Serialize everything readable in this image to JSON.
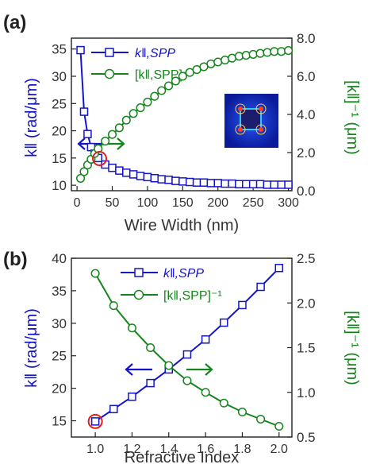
{
  "colors": {
    "left_series": "#1515c8",
    "right_series": "#16841c",
    "highlight": "#e02020",
    "text": "#333333"
  },
  "chart_data": [
    {
      "panel_label": "(a)",
      "type": "line",
      "xlabel": "Wire Width (nm)",
      "x_ticks": [
        "0",
        "50",
        "100",
        "150",
        "200",
        "250",
        "300"
      ],
      "y_left_label": "k‖ (rad/μm)",
      "y_left_ticks": [
        "10",
        "15",
        "20",
        "25",
        "30",
        "35"
      ],
      "y_right_label": "[k‖]⁻¹ (μm)",
      "y_right_ticks": [
        "0.0",
        "2.0",
        "4.0",
        "6.0",
        "8.0"
      ],
      "legend": [
        "k‖,SPP",
        "[k‖,SPP]⁻¹"
      ],
      "xlim": [
        -8,
        305
      ],
      "ylim_left": [
        9,
        37
      ],
      "ylim_right": [
        0,
        8
      ],
      "series": [
        {
          "axis": "left",
          "marker": "square",
          "x": [
            5,
            10,
            15,
            20,
            25,
            30,
            40,
            50,
            60,
            70,
            80,
            90,
            100,
            110,
            120,
            130,
            140,
            150,
            160,
            170,
            180,
            190,
            200,
            210,
            220,
            230,
            240,
            250,
            260,
            270,
            280,
            290,
            300
          ],
          "values": [
            34.8,
            23.5,
            19.4,
            17.0,
            15.8,
            15.0,
            13.8,
            13.2,
            12.7,
            12.3,
            12.0,
            11.7,
            11.5,
            11.3,
            11.1,
            11.0,
            10.8,
            10.7,
            10.6,
            10.5,
            10.5,
            10.4,
            10.4,
            10.3,
            10.3,
            10.2,
            10.2,
            10.2,
            10.2,
            10.1,
            10.1,
            10.1,
            10.1
          ]
        },
        {
          "axis": "right",
          "marker": "circle",
          "x": [
            5,
            10,
            15,
            20,
            25,
            30,
            40,
            50,
            60,
            70,
            80,
            90,
            100,
            110,
            120,
            130,
            140,
            150,
            160,
            170,
            180,
            190,
            200,
            210,
            220,
            230,
            240,
            250,
            260,
            270,
            280,
            290,
            300
          ],
          "values": [
            0.65,
            1.0,
            1.35,
            1.65,
            1.95,
            2.2,
            2.6,
            2.95,
            3.3,
            3.7,
            4.05,
            4.35,
            4.65,
            4.95,
            5.25,
            5.5,
            5.75,
            6.0,
            6.2,
            6.35,
            6.5,
            6.65,
            6.75,
            6.85,
            6.95,
            7.05,
            7.1,
            7.15,
            7.2,
            7.25,
            7.3,
            7.3,
            7.35
          ]
        }
      ],
      "highlight": {
        "x": 32,
        "y_left": 14.9
      }
    },
    {
      "panel_label": "(b)",
      "type": "line",
      "xlabel": "Refractive Index",
      "x_ticks": [
        "1.0",
        "1.2",
        "1.4",
        "1.6",
        "1.8",
        "2.0"
      ],
      "y_left_label": "k‖ (rad/μm)",
      "y_left_ticks": [
        "15",
        "20",
        "25",
        "30",
        "35",
        "40"
      ],
      "y_right_label": "[k‖]⁻¹ (μm)",
      "y_right_ticks": [
        "0.5",
        "1.0",
        "1.5",
        "2.0",
        "2.5"
      ],
      "legend": [
        "k‖,SPP",
        "[k‖,SPP]⁻¹"
      ],
      "xlim": [
        0.87,
        2.07
      ],
      "ylim_left": [
        12.5,
        40
      ],
      "ylim_right": [
        0.5,
        2.5
      ],
      "series": [
        {
          "axis": "left",
          "marker": "square",
          "x": [
            1.0,
            1.1,
            1.2,
            1.3,
            1.4,
            1.5,
            1.6,
            1.7,
            1.8,
            1.9,
            2.0
          ],
          "values": [
            14.9,
            16.8,
            18.7,
            20.8,
            22.9,
            25.2,
            27.5,
            30.1,
            32.8,
            35.6,
            38.5
          ],
          "marker_fill": [
            "#ffffff",
            "#ffffff",
            "#ffffff",
            "#ffffff",
            "#ffffff",
            "#ffffff",
            "#ffffff",
            "#ffffff",
            "#ffffff",
            "#ffffff",
            "#ffffff"
          ]
        },
        {
          "axis": "right",
          "marker": "circle",
          "x": [
            1.0,
            1.1,
            1.2,
            1.3,
            1.4,
            1.5,
            1.6,
            1.7,
            1.8,
            1.9,
            2.0
          ],
          "values": [
            2.33,
            1.97,
            1.72,
            1.5,
            1.3,
            1.13,
            1.0,
            0.88,
            0.78,
            0.7,
            0.62
          ]
        }
      ],
      "highlight": {
        "x": 1.0,
        "y_left": 14.9
      }
    }
  ]
}
